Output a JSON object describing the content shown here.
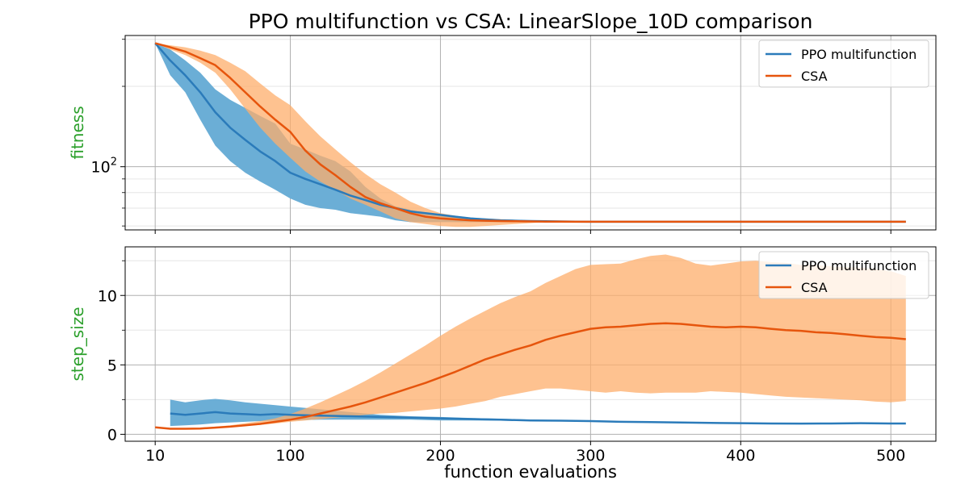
{
  "figure": {
    "title": "PPO multifunction vs CSA: LinearSlope_10D comparison",
    "xlabel": "function evaluations",
    "ylabel_color": "#2ca02c",
    "background": "#ffffff",
    "grid_color": "#b0b0b0"
  },
  "chart_data": [
    {
      "type": "line",
      "panel": "fitness",
      "title": "PPO multifunction vs CSA: LinearSlope_10D comparison",
      "xlabel": "",
      "ylabel": "fitness",
      "yscale": "log",
      "xlim": [
        -10,
        530
      ],
      "ylim": [
        58,
        310
      ],
      "xticks": [
        10,
        100,
        200,
        300,
        400,
        500
      ],
      "yticks": [
        {
          "value": 100,
          "label": "10²",
          "base": "10",
          "exp": "2"
        }
      ],
      "grid": true,
      "legend": "top-right",
      "legend_items": [
        {
          "label": "PPO multifunction",
          "color": "#2b7bba"
        },
        {
          "label": "CSA",
          "color": "#e6550d"
        }
      ],
      "x": [
        10,
        20,
        30,
        40,
        50,
        60,
        70,
        80,
        90,
        100,
        110,
        120,
        130,
        140,
        150,
        160,
        170,
        180,
        190,
        200,
        210,
        220,
        230,
        240,
        250,
        260,
        270,
        280,
        290,
        300,
        400,
        510
      ],
      "series": [
        {
          "name": "PPO multifunction",
          "color": "#2b7bba",
          "band_color": "#6baed6",
          "band_opacity": 1.0,
          "values": [
            290,
            250,
            220,
            190,
            160,
            140,
            126,
            114,
            105,
            95,
            90,
            86,
            82,
            78,
            75,
            72,
            70,
            68,
            67,
            66,
            65,
            64,
            63.5,
            63,
            62.8,
            62.6,
            62.5,
            62.4,
            62.3,
            62.2,
            62.2,
            62.2
          ],
          "lower": [
            290,
            220,
            190,
            150,
            120,
            105,
            95,
            88,
            82,
            76,
            72,
            70,
            69,
            67,
            66,
            65,
            63,
            62,
            62,
            62,
            62,
            62,
            62,
            62,
            62,
            62,
            62,
            62,
            62,
            62,
            62,
            62
          ],
          "upper": [
            290,
            275,
            250,
            225,
            195,
            178,
            166,
            155,
            145,
            122,
            116,
            110,
            105,
            96,
            84,
            76,
            71,
            69,
            67,
            66,
            65,
            64,
            63.5,
            63,
            62.8,
            62.6,
            62.5,
            62.4,
            62.3,
            62.2,
            62.2,
            62.2
          ]
        },
        {
          "name": "CSA",
          "color": "#e6550d",
          "band_color": "#fdae6b",
          "band_opacity": 0.75,
          "values": [
            290,
            280,
            270,
            255,
            240,
            215,
            190,
            168,
            150,
            135,
            115,
            102,
            93,
            84,
            77,
            73,
            70,
            67,
            65,
            64,
            63.5,
            63,
            62.8,
            62.6,
            62.5,
            62.4,
            62.3,
            62.3,
            62.2,
            62.2,
            62.2,
            62.2
          ],
          "lower": [
            290,
            275,
            262,
            245,
            225,
            195,
            165,
            140,
            122,
            108,
            96,
            88,
            82,
            76,
            72,
            68,
            64,
            62,
            61,
            60,
            59.5,
            59.5,
            60,
            60.5,
            61,
            61.5,
            62,
            62,
            62.1,
            62.2,
            62.2,
            62.2
          ],
          "upper": [
            290,
            285,
            280,
            272,
            262,
            245,
            228,
            205,
            185,
            170,
            148,
            130,
            116,
            104,
            94,
            86,
            80,
            74,
            70,
            67,
            65.5,
            64.5,
            64,
            63.6,
            63.3,
            63,
            62.8,
            62.6,
            62.4,
            62.2,
            62.2,
            62.2
          ]
        }
      ]
    },
    {
      "type": "line",
      "panel": "step_size",
      "xlabel": "function evaluations",
      "ylabel": "step_size",
      "xlim": [
        -10,
        530
      ],
      "ylim": [
        -0.5,
        13.5
      ],
      "xticks": [
        10,
        100,
        200,
        300,
        400,
        500
      ],
      "yticks": [
        0,
        5,
        10
      ],
      "grid": true,
      "legend": "top-right",
      "legend_items": [
        {
          "label": "PPO multifunction",
          "color": "#2b7bba"
        },
        {
          "label": "CSA",
          "color": "#e6550d"
        }
      ],
      "series": [
        {
          "name": "PPO multifunction",
          "color": "#2b7bba",
          "band_color": "#6baed6",
          "band_opacity": 1.0,
          "x": [
            20,
            30,
            40,
            50,
            60,
            70,
            80,
            90,
            100,
            120,
            140,
            160,
            180,
            200,
            220,
            240,
            260,
            280,
            300,
            320,
            340,
            360,
            380,
            400,
            420,
            440,
            460,
            480,
            500,
            510
          ],
          "values": [
            1.5,
            1.4,
            1.5,
            1.6,
            1.5,
            1.45,
            1.4,
            1.45,
            1.4,
            1.35,
            1.3,
            1.25,
            1.2,
            1.15,
            1.1,
            1.05,
            1.0,
            0.98,
            0.95,
            0.9,
            0.88,
            0.85,
            0.82,
            0.8,
            0.78,
            0.77,
            0.78,
            0.8,
            0.78,
            0.78
          ],
          "lower": [
            0.6,
            0.65,
            0.7,
            0.8,
            0.85,
            0.9,
            0.95,
            1.0,
            1.0,
            1.05,
            1.05,
            1.05,
            1.05,
            1.0,
            1.0,
            0.98,
            0.95,
            0.93,
            0.9,
            0.88,
            0.86,
            0.83,
            0.8,
            0.78,
            0.76,
            0.76,
            0.76,
            0.78,
            0.76,
            0.76
          ],
          "upper": [
            2.5,
            2.3,
            2.45,
            2.55,
            2.45,
            2.3,
            2.2,
            2.1,
            2.0,
            1.8,
            1.6,
            1.4,
            1.3,
            1.25,
            1.18,
            1.12,
            1.06,
            1.02,
            0.98,
            0.93,
            0.9,
            0.87,
            0.84,
            0.82,
            0.8,
            0.79,
            0.8,
            0.82,
            0.8,
            0.8
          ]
        },
        {
          "name": "CSA",
          "color": "#e6550d",
          "band_color": "#fdae6b",
          "band_opacity": 0.75,
          "x": [
            10,
            20,
            30,
            40,
            50,
            60,
            70,
            80,
            90,
            100,
            110,
            120,
            130,
            140,
            150,
            160,
            170,
            180,
            190,
            200,
            210,
            220,
            230,
            240,
            250,
            260,
            270,
            280,
            290,
            300,
            310,
            320,
            330,
            340,
            350,
            360,
            370,
            380,
            390,
            400,
            410,
            420,
            430,
            440,
            450,
            460,
            470,
            480,
            490,
            500,
            510
          ],
          "values": [
            0.5,
            0.4,
            0.4,
            0.42,
            0.48,
            0.55,
            0.65,
            0.75,
            0.9,
            1.05,
            1.25,
            1.5,
            1.75,
            2.0,
            2.3,
            2.65,
            3.0,
            3.35,
            3.7,
            4.1,
            4.5,
            4.95,
            5.4,
            5.75,
            6.1,
            6.4,
            6.8,
            7.1,
            7.35,
            7.6,
            7.7,
            7.75,
            7.85,
            7.95,
            8.0,
            7.95,
            7.85,
            7.75,
            7.7,
            7.75,
            7.7,
            7.6,
            7.5,
            7.45,
            7.35,
            7.3,
            7.2,
            7.1,
            7.0,
            6.95,
            6.85
          ],
          "lower": [
            0.5,
            0.4,
            0.4,
            0.42,
            0.46,
            0.52,
            0.6,
            0.68,
            0.78,
            0.9,
            1.0,
            1.1,
            1.2,
            1.3,
            1.4,
            1.5,
            1.55,
            1.65,
            1.75,
            1.85,
            2.0,
            2.2,
            2.4,
            2.7,
            2.9,
            3.1,
            3.3,
            3.3,
            3.2,
            3.1,
            3.0,
            3.1,
            3.0,
            2.95,
            3.0,
            3.0,
            3.0,
            3.1,
            3.05,
            3.0,
            2.9,
            2.8,
            2.7,
            2.65,
            2.6,
            2.55,
            2.5,
            2.45,
            2.35,
            2.3,
            2.4
          ],
          "upper": [
            0.5,
            0.4,
            0.4,
            0.45,
            0.55,
            0.65,
            0.8,
            0.95,
            1.15,
            1.45,
            1.85,
            2.3,
            2.8,
            3.3,
            3.85,
            4.45,
            5.1,
            5.75,
            6.4,
            7.1,
            7.75,
            8.35,
            8.9,
            9.45,
            9.9,
            10.3,
            10.9,
            11.4,
            11.9,
            12.2,
            12.25,
            12.3,
            12.6,
            12.85,
            12.95,
            12.7,
            12.3,
            12.15,
            12.3,
            12.45,
            12.5,
            12.4,
            12.35,
            12.2,
            12.2,
            12.1,
            12.05,
            12.0,
            11.9,
            11.75,
            11.4
          ]
        }
      ]
    }
  ]
}
